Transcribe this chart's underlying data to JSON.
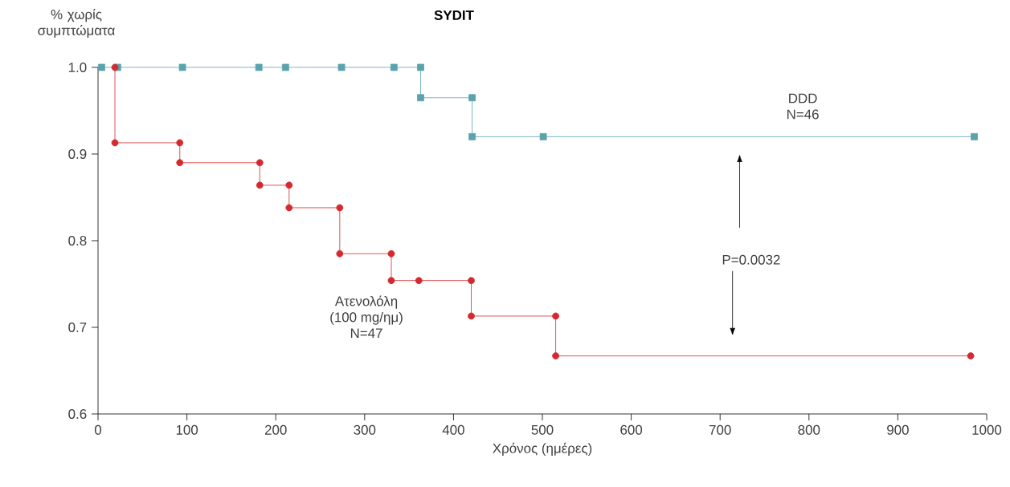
{
  "chart_data": {
    "type": "step",
    "title": "SYDIT",
    "ylabel": "% χωρίς συμπτώματα",
    "xlabel": "Χρόνος (ημέρες)",
    "xlim": [
      0,
      1000
    ],
    "xticks": [
      0,
      100,
      200,
      300,
      400,
      500,
      600,
      700,
      800,
      900,
      1000
    ],
    "ylim": [
      0.6,
      1.0
    ],
    "yticks": [
      0.6,
      0.7,
      0.8,
      0.9,
      {
        "value": 1.0,
        "label": "1.0"
      }
    ],
    "grid": false,
    "series": [
      {
        "name": "DDD",
        "color": "#5aa3ad",
        "marker": "square",
        "x": [
          4,
          22,
          95,
          181,
          211,
          274,
          333,
          363,
          363,
          421,
          421,
          501,
          986
        ],
        "values": [
          1.0,
          1.0,
          1.0,
          1.0,
          1.0,
          1.0,
          1.0,
          1.0,
          0.965,
          0.965,
          0.92,
          0.92,
          0.92
        ]
      },
      {
        "name": "Ατενολόλη",
        "color": "#d42a2f",
        "marker": "circle",
        "x": [
          19,
          19,
          92,
          92,
          182,
          182,
          215,
          215,
          272,
          272,
          330,
          330,
          361,
          420,
          420,
          515,
          515,
          982
        ],
        "values": [
          1.0,
          0.913,
          0.913,
          0.89,
          0.89,
          0.864,
          0.864,
          0.838,
          0.838,
          0.785,
          0.785,
          0.754,
          0.754,
          0.754,
          0.713,
          0.713,
          0.667,
          0.667
        ]
      }
    ],
    "annotations": [
      "N=46",
      "(100 mg/ημ)",
      "N=47",
      "P=0.0032"
    ]
  }
}
